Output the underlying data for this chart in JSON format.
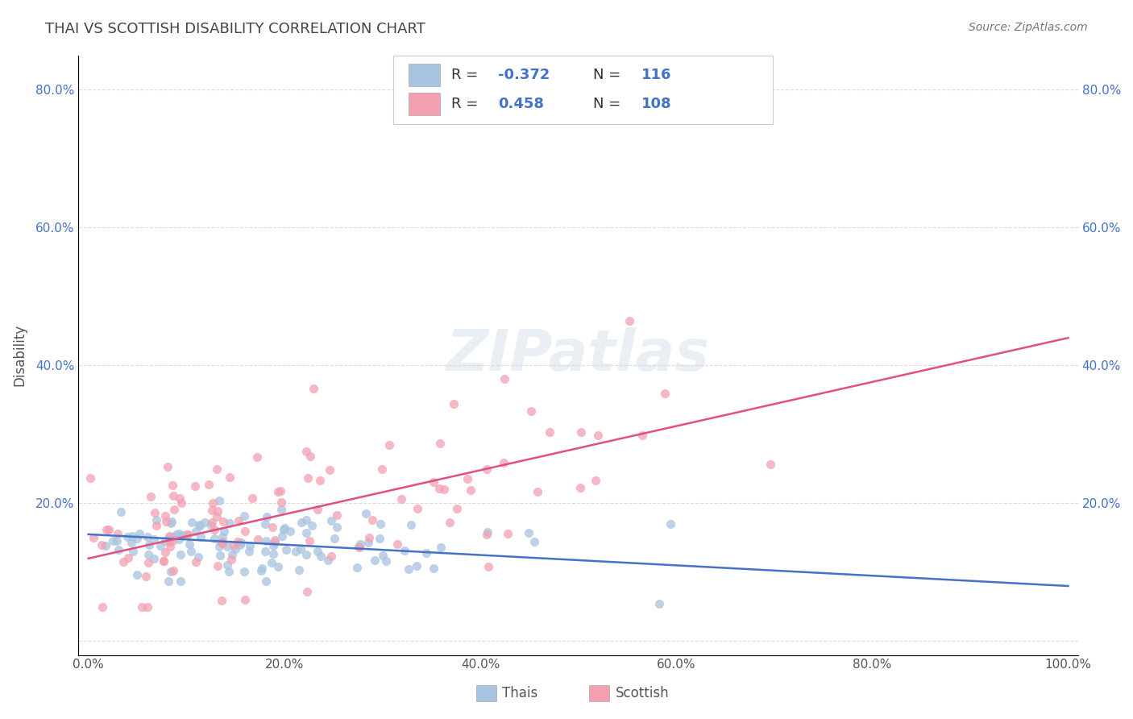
{
  "title": "THAI VS SCOTTISH DISABILITY CORRELATION CHART",
  "source": "Source: ZipAtlas.com",
  "xlabel": "",
  "ylabel": "Disability",
  "xlim": [
    0,
    1.0
  ],
  "ylim": [
    0,
    0.85
  ],
  "xticks": [
    0.0,
    0.2,
    0.4,
    0.6,
    0.8,
    1.0
  ],
  "xtick_labels": [
    "0.0%",
    "20.0%",
    "40.0%",
    "60.0%",
    "80.0%",
    "100.0%"
  ],
  "yticks": [
    0.0,
    0.2,
    0.4,
    0.6,
    0.8
  ],
  "ytick_labels": [
    "",
    "20.0%",
    "40.0%",
    "60.0%",
    "80.0%"
  ],
  "thai_color": "#a8c4e0",
  "scottish_color": "#f4a0b0",
  "thai_line_color": "#4472c4",
  "scottish_line_color": "#e05080",
  "thai_R": -0.372,
  "thai_N": 116,
  "scottish_R": 0.458,
  "scottish_N": 108,
  "thai_intercept": 0.155,
  "thai_slope": -0.075,
  "scottish_intercept": 0.12,
  "scottish_slope": 0.32,
  "watermark": "ZIPatlas",
  "background_color": "#ffffff",
  "grid_color": "#cccccc",
  "title_color": "#444444",
  "legend_R_color": "#4472c4",
  "annotation_color": "#4472c4"
}
